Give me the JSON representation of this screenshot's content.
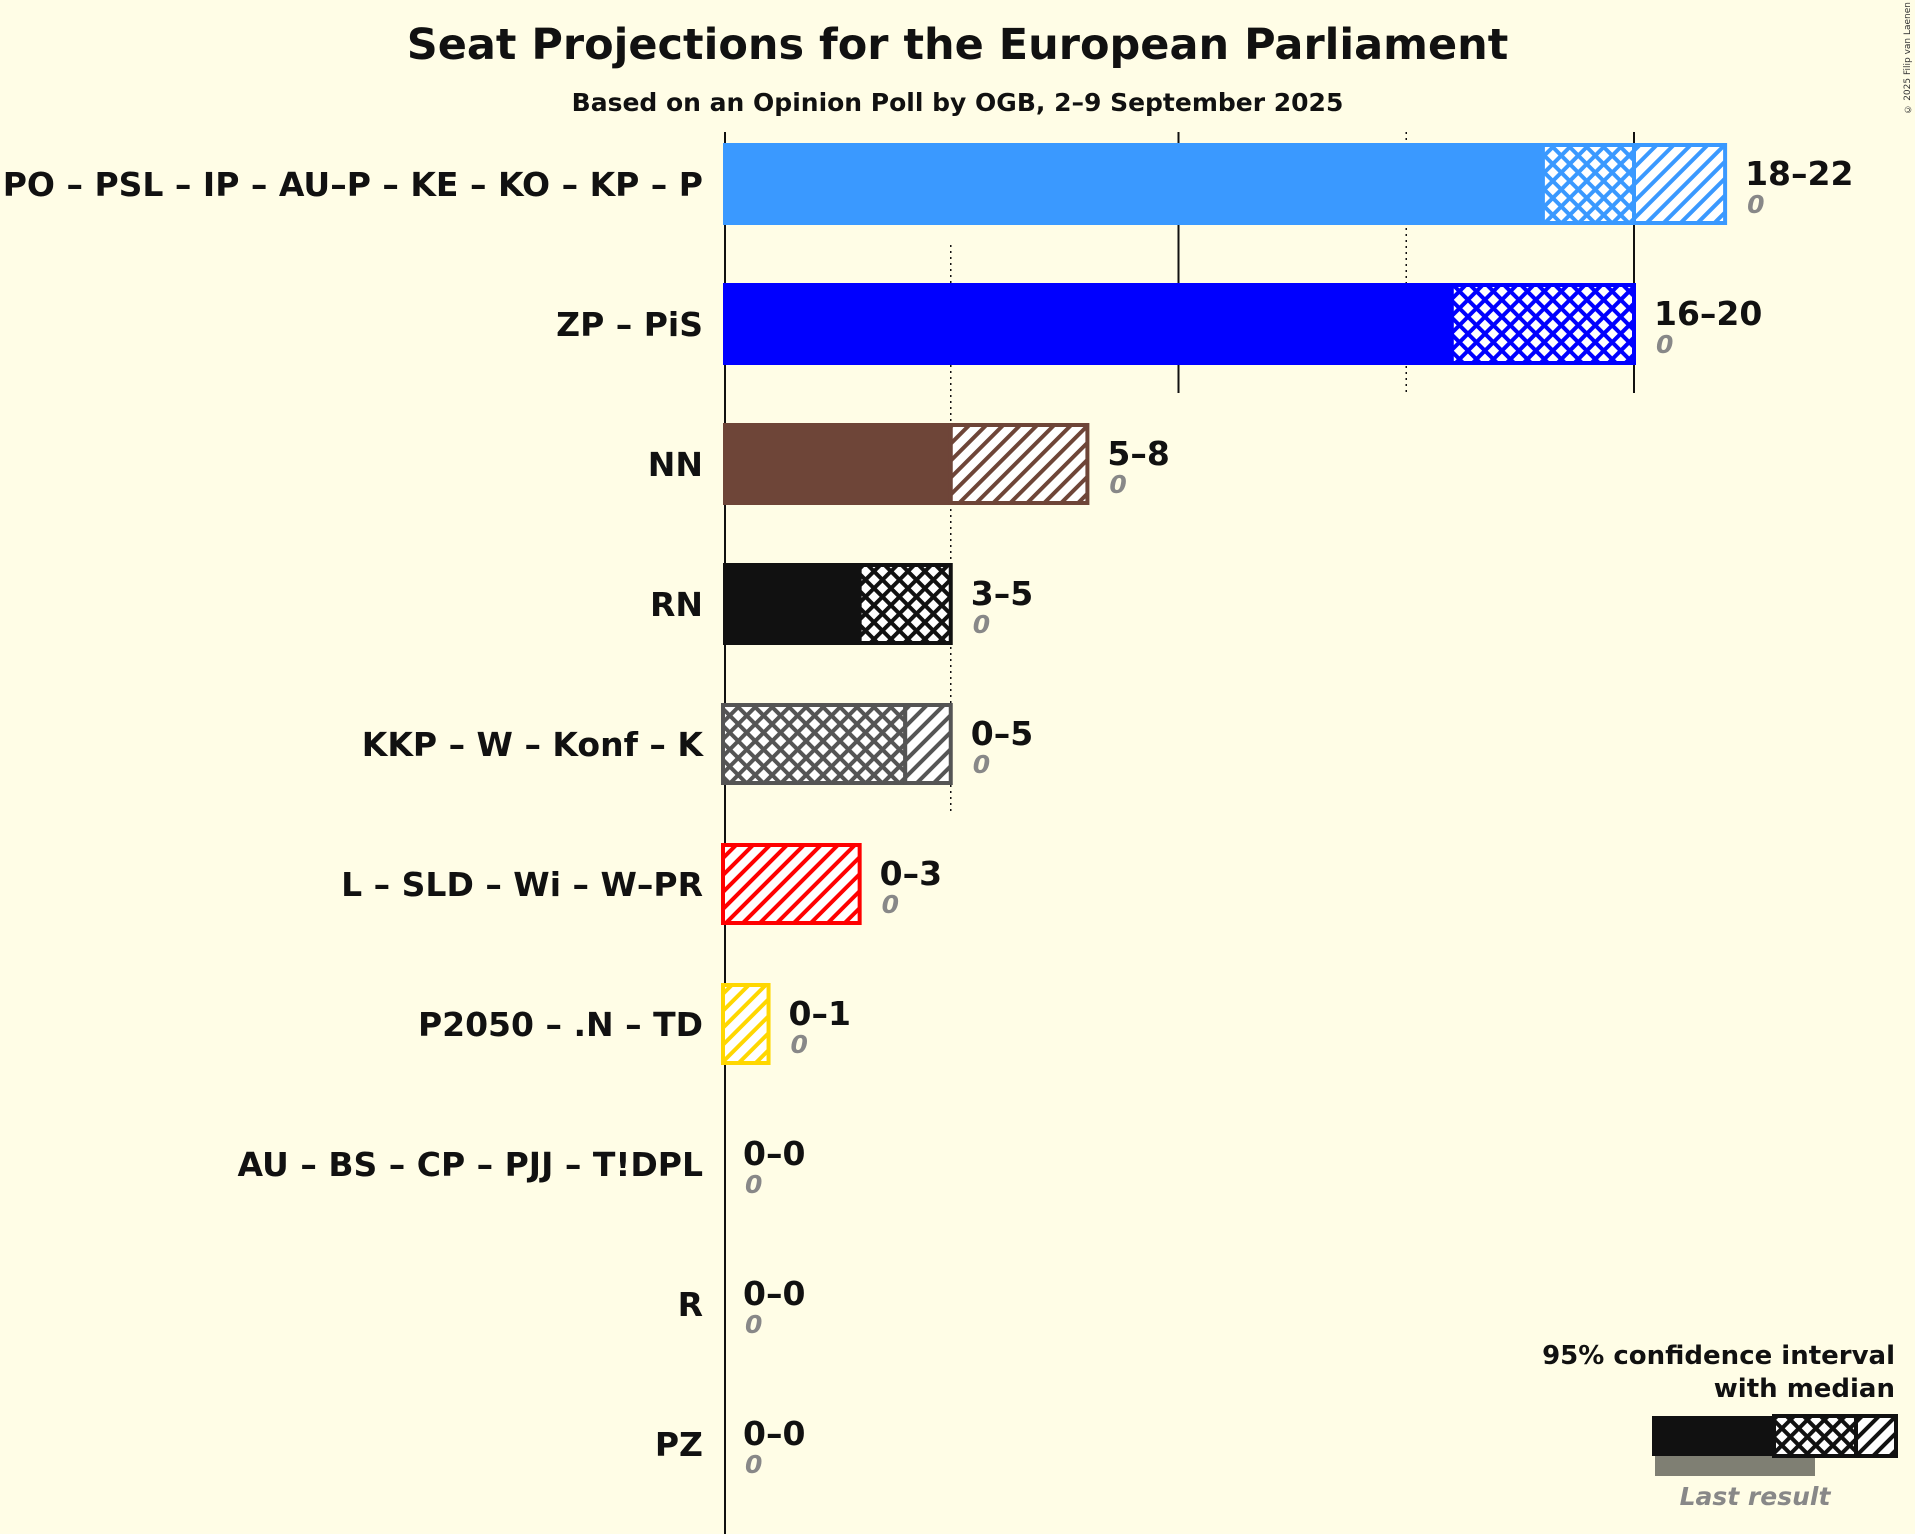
{
  "title": "Seat Projections for the European Parliament",
  "subtitle": "Based on an Opinion Poll by OGB, 2–9 September 2025",
  "copyright": "© 2025 Filip van Laenen",
  "legend": {
    "line1": "95% confidence interval",
    "line2": "with median",
    "last_result": "Last result"
  },
  "chart_data": {
    "type": "bar",
    "orientation": "horizontal",
    "title": "Seat Projections for the European Parliament",
    "subtitle": "Based on an Opinion Poll by OGB, 2–9 September 2025",
    "xlim": [
      0,
      22
    ],
    "grid": true,
    "parties": [
      {
        "name": "PO – PSL – IP – AU–P – KE – KO – KP – P",
        "low": 18,
        "median": 20,
        "high": 22,
        "range": "18–22",
        "last": "0",
        "last_value": 0,
        "color": "#3a99ff"
      },
      {
        "name": "ZP – PiS",
        "low": 16,
        "median": 20,
        "high": 20,
        "range": "16–20",
        "last": "0",
        "last_value": 0,
        "color": "#0000ff"
      },
      {
        "name": "NN",
        "low": 5,
        "median": 5,
        "high": 8,
        "range": "5–8",
        "last": "0",
        "last_value": 0,
        "color": "#6e4538"
      },
      {
        "name": "RN",
        "low": 3,
        "median": 5,
        "high": 5,
        "range": "3–5",
        "last": "0",
        "last_value": 0,
        "color": "#111111"
      },
      {
        "name": "KKP – W – Konf – K",
        "low": 0,
        "median": 4,
        "high": 5,
        "range": "0–5",
        "last": "0",
        "last_value": 0,
        "color": "#555555"
      },
      {
        "name": "L – SLD – Wi – W–PR",
        "low": 0,
        "median": 0,
        "high": 3,
        "range": "0–3",
        "last": "0",
        "last_value": 0,
        "color": "#ff0000"
      },
      {
        "name": "P2050 – .N – TD",
        "low": 0,
        "median": 0,
        "high": 1,
        "range": "0–1",
        "last": "0",
        "last_value": 0,
        "color": "#ffd700"
      },
      {
        "name": "AU – BS – CP – PJJ – T!DPL",
        "low": 0,
        "median": 0,
        "high": 0,
        "range": "0–0",
        "last": "0",
        "last_value": 0,
        "color": "#999999"
      },
      {
        "name": "R",
        "low": 0,
        "median": 0,
        "high": 0,
        "range": "0–0",
        "last": "0",
        "last_value": 0,
        "color": "#999999"
      },
      {
        "name": "PZ",
        "low": 0,
        "median": 0,
        "high": 0,
        "range": "0–0",
        "last": "0",
        "last_value": 0,
        "color": "#999999"
      }
    ]
  }
}
